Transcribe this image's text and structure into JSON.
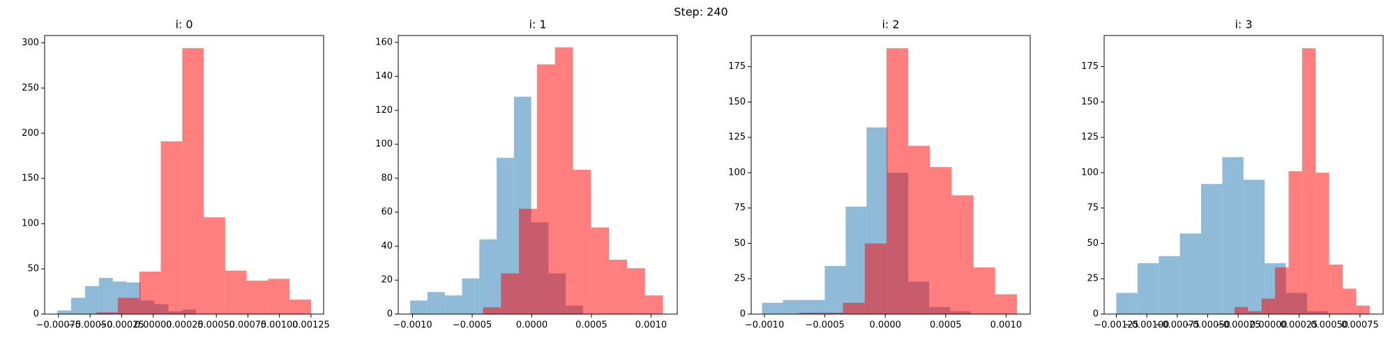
{
  "title": "Step: 240",
  "chart_data": [
    {
      "type": "histogram",
      "title": "i: 0",
      "xlim": [
        -0.00086,
        0.00135
      ],
      "ylim": [
        0,
        308
      ],
      "opacity": 0.5,
      "xticks": [
        {
          "value": -0.00075,
          "label": "−0.00075"
        },
        {
          "value": -0.0005,
          "label": "−0.00050"
        },
        {
          "value": -0.00025,
          "label": "−0.00025"
        },
        {
          "value": 0,
          "label": "0.00000"
        },
        {
          "value": 0.00025,
          "label": "0.00025"
        },
        {
          "value": 0.0005,
          "label": "0.00050"
        },
        {
          "value": 0.00075,
          "label": "0.00075"
        },
        {
          "value": 0.001,
          "label": "0.00100"
        },
        {
          "value": 0.00125,
          "label": "0.00125"
        }
      ],
      "yticks": [
        0,
        50,
        100,
        150,
        200,
        250,
        300
      ],
      "series": [
        {
          "color": "#1f77b4",
          "bins": [
            -0.00076,
            -0.00065,
            -0.00054,
            -0.00043,
            -0.00032,
            -0.00021,
            -0.0001,
            1e-05,
            0.00012,
            0.00023,
            0.00034
          ],
          "values": [
            4,
            18,
            31,
            40,
            36,
            35,
            15,
            11,
            3,
            5
          ]
        },
        {
          "color": "#ff0000",
          "bins": [
            -0.00045,
            -0.00028,
            -0.00011,
            6e-05,
            0.00023,
            0.0004,
            0.00057,
            0.00074,
            0.00091,
            0.00108,
            0.00125
          ],
          "values": [
            2,
            18,
            47,
            191,
            294,
            107,
            48,
            37,
            39,
            16
          ]
        }
      ]
    },
    {
      "type": "histogram",
      "title": "i: 1",
      "xlim": [
        -0.00112,
        0.00122
      ],
      "ylim": [
        0,
        164
      ],
      "opacity": 0.5,
      "xticks": [
        {
          "value": -0.001,
          "label": "−0.0010"
        },
        {
          "value": -0.0005,
          "label": "−0.0005"
        },
        {
          "value": 0,
          "label": "0.0000"
        },
        {
          "value": 0.0005,
          "label": "0.0005"
        },
        {
          "value": 0.001,
          "label": "0.0010"
        }
      ],
      "yticks": [
        0,
        20,
        40,
        60,
        80,
        100,
        120,
        140,
        160
      ],
      "series": [
        {
          "color": "#1f77b4",
          "bins": [
            -0.00102,
            -0.000875,
            -0.00073,
            -0.000585,
            -0.00044,
            -0.000295,
            -0.00015,
            -5e-06,
            0.00014,
            0.000285,
            0.00043
          ],
          "values": [
            8,
            13,
            11,
            21,
            44,
            92,
            128,
            54,
            24,
            5
          ]
        },
        {
          "color": "#ff0000",
          "bins": [
            -0.00041,
            -0.000259,
            -0.000108,
            4.3e-05,
            0.000194,
            0.000345,
            0.000496,
            0.000647,
            0.000798,
            0.000949,
            0.0011
          ],
          "values": [
            4,
            24,
            62,
            147,
            157,
            85,
            51,
            32,
            27,
            11
          ]
        }
      ]
    },
    {
      "type": "histogram",
      "title": "i: 2",
      "xlim": [
        -0.00111,
        0.0012
      ],
      "ylim": [
        0,
        197
      ],
      "opacity": 0.5,
      "xticks": [
        {
          "value": -0.001,
          "label": "−0.0010"
        },
        {
          "value": -0.0005,
          "label": "−0.0005"
        },
        {
          "value": 0,
          "label": "0.0000"
        },
        {
          "value": 0.0005,
          "label": "0.0005"
        },
        {
          "value": 0.001,
          "label": "0.0010"
        }
      ],
      "yticks": [
        0,
        25,
        50,
        75,
        100,
        125,
        150,
        175
      ],
      "series": [
        {
          "color": "#1f77b4",
          "bins": [
            -0.00102,
            -0.000847,
            -0.000674,
            -0.000501,
            -0.000328,
            -0.000155,
            1.8e-05,
            0.000191,
            0.000364,
            0.000537,
            0.00071
          ],
          "values": [
            8,
            10,
            10,
            34,
            76,
            132,
            100,
            23,
            5,
            2
          ]
        },
        {
          "color": "#ff0000",
          "bins": [
            -0.00071,
            -0.00053,
            -0.00035,
            -0.00017,
            1e-05,
            0.00019,
            0.00037,
            0.00055,
            0.00073,
            0.00091,
            0.00109
          ],
          "values": [
            1,
            1,
            8,
            50,
            188,
            119,
            104,
            84,
            33,
            14
          ]
        }
      ]
    },
    {
      "type": "histogram",
      "title": "i: 3",
      "xlim": [
        -0.00135,
        0.00094
      ],
      "ylim": [
        0,
        197
      ],
      "opacity": 0.5,
      "xticks": [
        {
          "value": -0.00125,
          "label": "−0.00125"
        },
        {
          "value": -0.001,
          "label": "−0.00100"
        },
        {
          "value": -0.00075,
          "label": "−0.00075"
        },
        {
          "value": -0.0005,
          "label": "−0.00050"
        },
        {
          "value": -0.00025,
          "label": "−0.00025"
        },
        {
          "value": 0,
          "label": "0.00000"
        },
        {
          "value": 0.00025,
          "label": "0.00025"
        },
        {
          "value": 0.0005,
          "label": "0.00050"
        },
        {
          "value": 0.00075,
          "label": "0.00075"
        }
      ],
      "yticks": [
        0,
        25,
        50,
        75,
        100,
        125,
        150,
        175
      ],
      "series": [
        {
          "color": "#1f77b4",
          "bins": [
            -0.00125,
            -0.001076,
            -0.000902,
            -0.000728,
            -0.000554,
            -0.00038,
            -0.000206,
            -3.2e-05,
            0.000142,
            0.000316,
            0.00049
          ],
          "values": [
            15,
            36,
            41,
            57,
            92,
            111,
            95,
            36,
            15,
            2
          ]
        },
        {
          "color": "#ff0000",
          "bins": [
            -0.00028,
            -0.000169,
            -5.8e-05,
            5.3e-05,
            0.000164,
            0.000275,
            0.000386,
            0.000497,
            0.000608,
            0.000719,
            0.00083
          ],
          "values": [
            5,
            2,
            11,
            33,
            101,
            188,
            100,
            35,
            18,
            6
          ]
        }
      ]
    }
  ]
}
